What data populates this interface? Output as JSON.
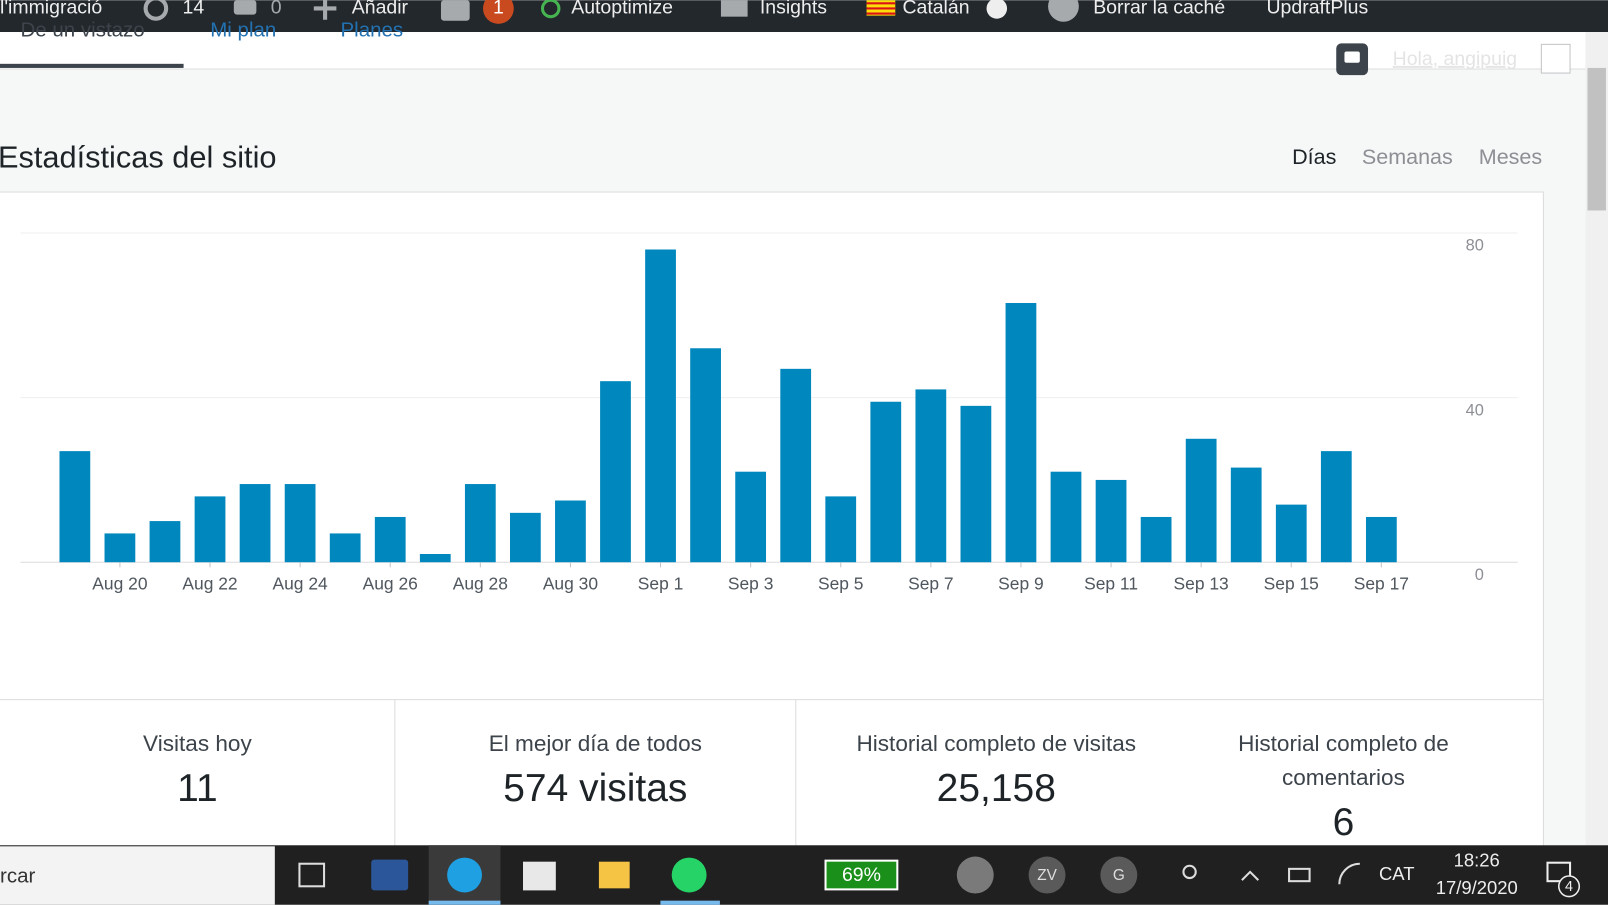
{
  "admin_bar": {
    "site": "l'immigració",
    "updates": "14",
    "comments": "0",
    "add": "Añadir",
    "yoast": "1",
    "items": [
      "Autoptimize",
      "Insights",
      "Catalán",
      "Borrar la caché",
      "UpdraftPlus"
    ]
  },
  "tabs": [
    "De un vistazo",
    "Mi plan",
    "Planes"
  ],
  "greeting": "Hola, angipuig",
  "header": {
    "title": "Estadísticas del sitio",
    "periods": [
      "Días",
      "Semanas",
      "Meses"
    ]
  },
  "chart_data": {
    "type": "bar",
    "color": "#0087be",
    "grid": true,
    "categories": [
      null,
      "Aug 20",
      null,
      "Aug 22",
      null,
      "Aug 24",
      null,
      "Aug 26",
      null,
      "Aug 28",
      null,
      "Aug 30",
      null,
      "Sep 1",
      null,
      "Sep 3",
      null,
      "Sep 5",
      null,
      "Sep 7",
      null,
      "Sep 9",
      null,
      "Sep 11",
      null,
      "Sep 13",
      null,
      "Sep 15",
      null,
      "Sep 17"
    ],
    "values": [
      27,
      7,
      10,
      16,
      19,
      19,
      7,
      11,
      2,
      19,
      12,
      15,
      44,
      76,
      52,
      22,
      47,
      16,
      39,
      42,
      38,
      63,
      22,
      20,
      11,
      30,
      23,
      14,
      27,
      11
    ],
    "ylim": [
      0,
      80
    ],
    "yticks": [
      0,
      40,
      80
    ]
  },
  "stats": [
    {
      "label": "Visitas hoy",
      "value": "11"
    },
    {
      "label": "El mejor día de todos",
      "value": "574 visitas"
    },
    {
      "label": "Historial completo de visitas",
      "value": "25,158"
    },
    {
      "label": "Historial completo de comentarios",
      "value": "6"
    }
  ],
  "taskbar": {
    "search": "rcar",
    "battery": "69%",
    "avatars": [
      "ZV",
      "G"
    ],
    "language": "CAT",
    "time": "18:26",
    "date": "17/9/2020",
    "notifications": "4"
  }
}
